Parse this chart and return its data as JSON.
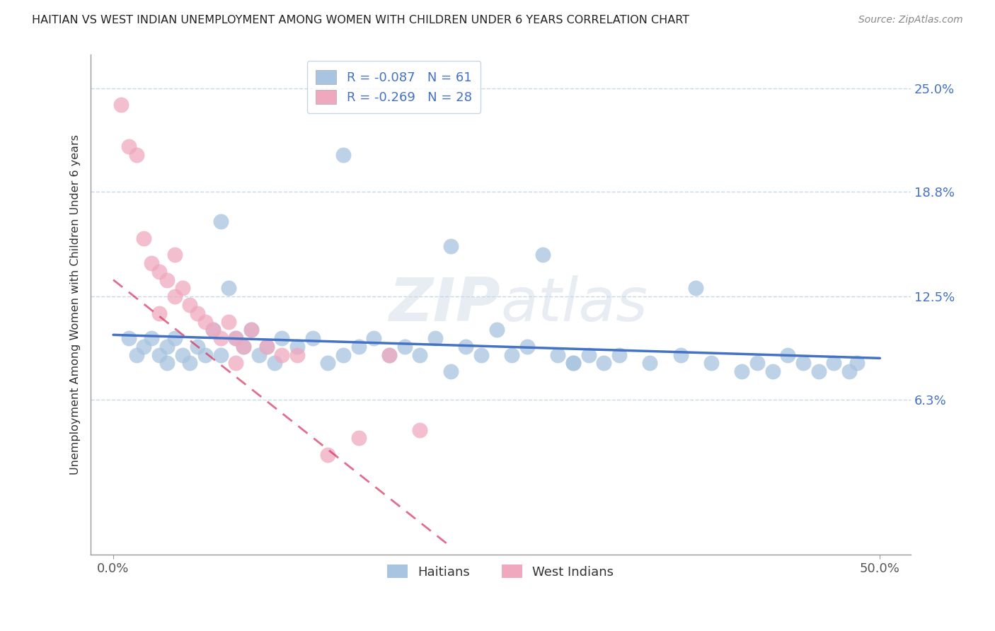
{
  "title": "HAITIAN VS WEST INDIAN UNEMPLOYMENT AMONG WOMEN WITH CHILDREN UNDER 6 YEARS CORRELATION CHART",
  "source": "Source: ZipAtlas.com",
  "ylabel": "Unemployment Among Women with Children Under 6 years",
  "xlim": [
    -1.5,
    52
  ],
  "ylim": [
    -3,
    27
  ],
  "xtick_vals": [
    0.0,
    50.0
  ],
  "xtick_labels": [
    "0.0%",
    "50.0%"
  ],
  "ytick_vals": [
    6.3,
    12.5,
    18.8,
    25.0
  ],
  "ytick_labels": [
    "6.3%",
    "12.5%",
    "18.8%",
    "25.0%"
  ],
  "legend_r1": "-0.087",
  "legend_n1": "61",
  "legend_r2": "-0.269",
  "legend_n2": "28",
  "haitians_color": "#a8c4e0",
  "west_indians_color": "#f0a8be",
  "trend_haitian_color": "#4472c4",
  "trend_wi_color": "#d63060",
  "background_color": "#ffffff",
  "grid_color": "#c8d8e8",
  "haitians_x": [
    1.0,
    1.5,
    2.0,
    2.5,
    3.0,
    3.5,
    3.5,
    4.0,
    4.5,
    5.0,
    5.5,
    6.0,
    6.5,
    7.0,
    7.0,
    7.5,
    8.0,
    8.5,
    9.0,
    9.5,
    10.0,
    10.5,
    11.0,
    12.0,
    13.0,
    14.0,
    15.0,
    16.0,
    17.0,
    18.0,
    19.0,
    20.0,
    21.0,
    22.0,
    23.0,
    24.0,
    25.0,
    26.0,
    27.0,
    28.0,
    29.0,
    30.0,
    31.0,
    32.0,
    33.0,
    35.0,
    37.0,
    39.0,
    41.0,
    42.0,
    43.0,
    44.0,
    45.0,
    46.0,
    47.0,
    48.0,
    48.5,
    38.0,
    30.0,
    22.0,
    15.0
  ],
  "haitians_y": [
    10.0,
    9.0,
    9.5,
    10.0,
    9.0,
    9.5,
    8.5,
    10.0,
    9.0,
    8.5,
    9.5,
    9.0,
    10.5,
    17.0,
    9.0,
    13.0,
    10.0,
    9.5,
    10.5,
    9.0,
    9.5,
    8.5,
    10.0,
    9.5,
    10.0,
    8.5,
    9.0,
    9.5,
    10.0,
    9.0,
    9.5,
    9.0,
    10.0,
    15.5,
    9.5,
    9.0,
    10.5,
    9.0,
    9.5,
    15.0,
    9.0,
    8.5,
    9.0,
    8.5,
    9.0,
    8.5,
    9.0,
    8.5,
    8.0,
    8.5,
    8.0,
    9.0,
    8.5,
    8.0,
    8.5,
    8.0,
    8.5,
    13.0,
    8.5,
    8.0,
    21.0
  ],
  "west_indians_x": [
    0.5,
    1.0,
    1.5,
    2.0,
    2.5,
    3.0,
    3.5,
    4.0,
    4.5,
    5.0,
    5.5,
    6.0,
    6.5,
    7.0,
    7.5,
    8.0,
    8.5,
    9.0,
    10.0,
    11.0,
    12.0,
    14.0,
    16.0,
    18.0,
    20.0,
    4.0,
    8.0,
    3.0
  ],
  "west_indians_y": [
    24.0,
    21.5,
    21.0,
    16.0,
    14.5,
    14.0,
    13.5,
    12.5,
    13.0,
    12.0,
    11.5,
    11.0,
    10.5,
    10.0,
    11.0,
    10.0,
    9.5,
    10.5,
    9.5,
    9.0,
    9.0,
    3.0,
    4.0,
    9.0,
    4.5,
    15.0,
    8.5,
    11.5
  ],
  "haitian_trend_x": [
    0,
    50
  ],
  "haitian_trend_y": [
    10.2,
    8.8
  ],
  "wi_trend_x": [
    0,
    22
  ],
  "wi_trend_y": [
    13.5,
    -2.5
  ]
}
